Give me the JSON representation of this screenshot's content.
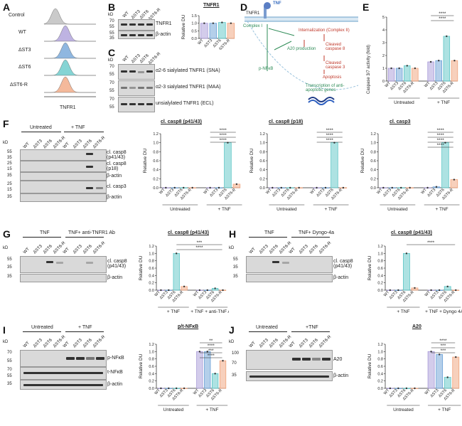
{
  "panels": [
    "A",
    "B",
    "C",
    "D",
    "E",
    "F",
    "G",
    "H",
    "I",
    "J"
  ],
  "lines": [
    "WT",
    "ΔST3",
    "ΔST6",
    "ΔST6-R"
  ],
  "colors": {
    "WT": "#a89ad8",
    "ΔST3": "#6a9fd6",
    "ΔST6": "#5cc6c6",
    "ΔST6-R": "#f0a27a",
    "Control": "#b8b8b8"
  },
  "kd": "kD",
  "panelA": {
    "samples": [
      "Control",
      "WT",
      "ΔST3",
      "ΔST6",
      "ΔST6-R"
    ],
    "xlabel": "TNFR1"
  },
  "panelB": {
    "labels": [
      "TNFR1",
      "β-actin"
    ],
    "markers": [
      "70",
      "55",
      "55",
      "35"
    ],
    "chart_title": "TNFR1",
    "ns": "ns",
    "ylabel": "Relative DU"
  },
  "panelC": {
    "labels": [
      "α2-6 sialylated TNFR1 (SNA)",
      "α2-3 sialylated TNFR1 (MAA)",
      "unsialylated TNFR1 (ECL)"
    ],
    "markers": [
      "70",
      "55",
      "70",
      "55",
      "70",
      "55"
    ]
  },
  "panelD": {
    "tnf": "TNF",
    "tnfr1": "TNFR1",
    "complex1": "Complex I",
    "internalization": "Internalization (Complex II)",
    "cleaved8": "Cleaved caspase 8",
    "cleaved3": "Cleaved caspase 3",
    "apoptosis": "Apoptosis",
    "pnfkb": "p-NFκB",
    "a20": "A20 production",
    "transcription": "Transcription of anti-apoptotic genes"
  },
  "panelE": {
    "ylabel": "Caspase 3/7 activity (fold)",
    "groups": [
      "Untreated",
      "+ TNF"
    ],
    "ns": "ns",
    "stars": "****",
    "yticks": [
      "0",
      "1",
      "2",
      "3",
      "4",
      "5"
    ]
  },
  "panelF": {
    "conditions": [
      "Untreated",
      "+ TNF"
    ],
    "blot_labels": [
      "cl. casp8 (p41/43)",
      "cl. casp8 (p18)",
      "β-actin",
      "cl. casp3",
      "β-actin"
    ],
    "markers": [
      "55",
      "35",
      "25",
      "15",
      "35",
      "25",
      "15",
      "35"
    ],
    "chart_titles": [
      "cl. casp8 (p41/43)",
      "cl. casp8 (p18)",
      "cl. casp3"
    ]
  },
  "panelG": {
    "conditions": [
      "TNF",
      "TNF+ anti-TNFR1 Ab"
    ],
    "blot_labels": [
      "cl. casp8 (p41/43)",
      "β-actin"
    ],
    "markers": [
      "55",
      "35",
      "35"
    ],
    "chart_title": "cl. casp8 (p41/43)",
    "groups": [
      "+ TNF",
      "+ TNF + anti-TNF Ab"
    ],
    "stars": [
      "***",
      "****"
    ]
  },
  "panelH": {
    "conditions": [
      "TNF",
      "TNF+ Dyngo-4a"
    ],
    "blot_labels": [
      "cl. casp8 (p41/43)",
      "β-actin"
    ],
    "markers": [
      "55",
      "35",
      "35"
    ],
    "chart_title": "cl. casp8 (p41/43)",
    "groups": [
      "+ TNF",
      "+ TNF + Dyngo 4A"
    ],
    "stars": "****"
  },
  "panelI": {
    "conditions": [
      "Untreated",
      "+ TNF"
    ],
    "blot_labels": [
      "p-NFκB",
      "t-NFκB",
      "β-actin"
    ],
    "markers": [
      "70",
      "55",
      "70",
      "55",
      "35"
    ],
    "chart_title": "p/t-NFκB",
    "groups": [
      "Untreated",
      "+ TNF"
    ],
    "stars": [
      "**",
      "****",
      "***",
      "****"
    ]
  },
  "panelJ": {
    "conditions": [
      "Untreated",
      "+TNF"
    ],
    "blot_labels": [
      "A20",
      "β-actin"
    ],
    "markers": [
      "100",
      "70",
      "35"
    ],
    "chart_title": "A20",
    "groups": [
      "Untreated",
      "+ TNF"
    ],
    "stars": [
      "****",
      "***",
      "***"
    ]
  },
  "yticks_rel": [
    "0.0",
    "0.2",
    "0.4",
    "0.6",
    "0.8",
    "1.0",
    "1.2"
  ],
  "yticks_B": [
    "0.0",
    "0.5",
    "1.0",
    "1.5"
  ],
  "chart_data": [
    {
      "type": "bar",
      "panel": "B",
      "title": "TNFR1",
      "ylabel": "Relative DU",
      "categories": [
        "WT",
        "ΔST3",
        "ΔST6",
        "ΔST6-R"
      ],
      "values": [
        1.0,
        1.0,
        1.05,
        1.0
      ],
      "ylim": [
        0,
        1.5
      ]
    },
    {
      "type": "bar",
      "panel": "E",
      "ylabel": "Caspase 3/7 activity (fold)",
      "categories": [
        "WT",
        "ΔST3",
        "ΔST6",
        "ΔST6-R",
        "WT",
        "ΔST3",
        "ΔST6",
        "ΔST6-R"
      ],
      "values": [
        1.0,
        1.0,
        1.2,
        1.0,
        1.5,
        1.6,
        3.5,
        1.6
      ],
      "ylim": [
        0,
        5
      ]
    },
    {
      "type": "bar",
      "panel": "F1",
      "title": "cl. casp8 (p41/43)",
      "categories": [
        "WT",
        "ΔST3",
        "ΔST6",
        "ΔST6-R",
        "WT",
        "ΔST3",
        "ΔST6",
        "ΔST6-R"
      ],
      "values": [
        0,
        0,
        0,
        0,
        0,
        0,
        1.0,
        0.08
      ],
      "ylim": [
        0,
        1.2
      ]
    },
    {
      "type": "bar",
      "panel": "F2",
      "title": "cl. casp8 (p18)",
      "categories": [
        "WT",
        "ΔST3",
        "ΔST6",
        "ΔST6-R",
        "WT",
        "ΔST3",
        "ΔST6",
        "ΔST6-R"
      ],
      "values": [
        0,
        0,
        0,
        0,
        0,
        0,
        1.0,
        0.0
      ],
      "ylim": [
        0,
        1.2
      ]
    },
    {
      "type": "bar",
      "panel": "F3",
      "title": "cl. casp3",
      "categories": [
        "WT",
        "ΔST3",
        "ΔST6",
        "ΔST6-R",
        "WT",
        "ΔST3",
        "ΔST6",
        "ΔST6-R"
      ],
      "values": [
        0,
        0,
        0,
        0,
        0,
        0.02,
        1.0,
        0.18
      ],
      "ylim": [
        0,
        1.2
      ]
    },
    {
      "type": "bar",
      "panel": "G",
      "title": "cl. casp8 (p41/43)",
      "categories": [
        "WT",
        "ΔST3",
        "ΔST6",
        "ΔST6-R",
        "WT",
        "ΔST3",
        "ΔST6",
        "ΔST6-R"
      ],
      "values": [
        0,
        0,
        1.0,
        0.1,
        0,
        0,
        0.05,
        0
      ],
      "ylim": [
        0,
        1.2
      ]
    },
    {
      "type": "bar",
      "panel": "H",
      "title": "cl. casp8 (p41/43)",
      "categories": [
        "WT",
        "ΔST3",
        "ΔST6",
        "ΔST6-R",
        "WT",
        "ΔST3",
        "ΔST6",
        "ΔST6-R"
      ],
      "values": [
        0,
        0,
        1.0,
        0.06,
        0,
        0,
        0.1,
        0
      ],
      "ylim": [
        0,
        1.2
      ]
    },
    {
      "type": "bar",
      "panel": "I",
      "title": "p/t-NFκB",
      "categories": [
        "WT",
        "ΔST3",
        "ΔST6",
        "ΔST6-R",
        "WT",
        "ΔST3",
        "ΔST6",
        "ΔST6-R"
      ],
      "values": [
        0,
        0,
        0,
        0,
        1.0,
        1.0,
        0.4,
        0.75
      ],
      "ylim": [
        0,
        1.2
      ]
    },
    {
      "type": "bar",
      "panel": "J",
      "title": "A20",
      "categories": [
        "WT",
        "ΔST3",
        "ΔST6",
        "ΔST6-R",
        "WT",
        "ΔST3",
        "ΔST6",
        "ΔST6-R"
      ],
      "values": [
        0,
        0,
        0,
        0,
        1.0,
        0.92,
        0.3,
        0.85
      ],
      "ylim": [
        0,
        1.2
      ]
    }
  ]
}
